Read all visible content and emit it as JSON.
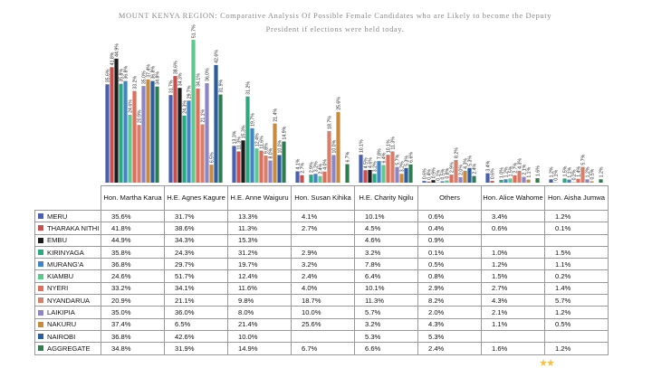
{
  "title_line1": "MOUNT KENYA REGION: Comparative Analysis Of Possible Female Candidates who are Likely to become the Deputy",
  "title_line2": "President if elections were held today.",
  "chart_data": {
    "type": "bar",
    "categories": [
      "Hon. Martha Karua",
      "H.E. Agnes Kagure",
      "H.E. Anne Waiguru",
      "Hon. Susan Kihika",
      "H.E. Charity Ngilu",
      "Others",
      "Hon. Alice Wahome",
      "Hon. Aisha Jumwa"
    ],
    "series": [
      {
        "name": "MERU",
        "color": "#4a5fb2",
        "values": [
          "35.6%",
          "31.7%",
          "13.3%",
          "4.1%",
          "10.1%",
          "0.6%",
          "3.4%",
          "1.2%"
        ]
      },
      {
        "name": "THARAKA NITHI",
        "color": "#c9504a",
        "values": [
          "41.8%",
          "38.6%",
          "11.3%",
          "2.7%",
          "4.5%",
          "0.4%",
          "0.6%",
          "0.1%"
        ]
      },
      {
        "name": "EMBU",
        "color": "#1c1c1c",
        "values": [
          "44.9%",
          "34.3%",
          "15.3%",
          "",
          "4.6%",
          "0.9%",
          "",
          ""
        ]
      },
      {
        "name": "KIRINYAGA",
        "color": "#2aa87e",
        "values": [
          "35.8%",
          "24.3%",
          "31.2%",
          "2.9%",
          "3.2%",
          "0.1%",
          "1.0%",
          "1.5%"
        ]
      },
      {
        "name": "MURANG'A",
        "color": "#3e86c8",
        "values": [
          "36.8%",
          "29.7%",
          "19.7%",
          "3.2%",
          "7.8%",
          "0.5%",
          "1.2%",
          "1.1%"
        ]
      },
      {
        "name": "KIAMBU",
        "color": "#5dc98e",
        "values": [
          "24.6%",
          "51.7%",
          "12.4%",
          "2.4%",
          "6.4%",
          "0.8%",
          "1.5%",
          "0.2%"
        ]
      },
      {
        "name": "NYERI",
        "color": "#e06f5a",
        "values": [
          "33.2%",
          "34.1%",
          "11.6%",
          "4.0%",
          "10.1%",
          "2.9%",
          "2.7%",
          "1.4%"
        ]
      },
      {
        "name": "NYANDARUA",
        "color": "#d4806a",
        "values": [
          "20.9%",
          "21.1%",
          "9.8%",
          "18.7%",
          "11.3%",
          "8.2%",
          "4.3%",
          "5.7%"
        ]
      },
      {
        "name": "LAIKIPIA",
        "color": "#8d86c6",
        "values": [
          "35.0%",
          "36.0%",
          "8.0%",
          "10.0%",
          "5.7%",
          "2.0%",
          "2.1%",
          "1.2%"
        ]
      },
      {
        "name": "NAKURU",
        "color": "#c98a3c",
        "values": [
          "37.4%",
          "6.5%",
          "21.4%",
          "25.6%",
          "3.2%",
          "4.3%",
          "1.1%",
          "0.5%"
        ]
      },
      {
        "name": "NAIROBI",
        "color": "#2b5e9e",
        "values": [
          "36.8%",
          "42.6%",
          "10.0%",
          "",
          "5.3%",
          "5.3%",
          "",
          ""
        ]
      },
      {
        "name": "AGGREGATE",
        "color": "#2e7d4f",
        "values": [
          "34.8%",
          "31.9%",
          "14.9%",
          "6.7%",
          "6.6%",
          "2.4%",
          "1.6%",
          "1.2%"
        ]
      }
    ],
    "ylim": [
      0,
      55
    ],
    "grid": false,
    "legend": "table-below"
  }
}
